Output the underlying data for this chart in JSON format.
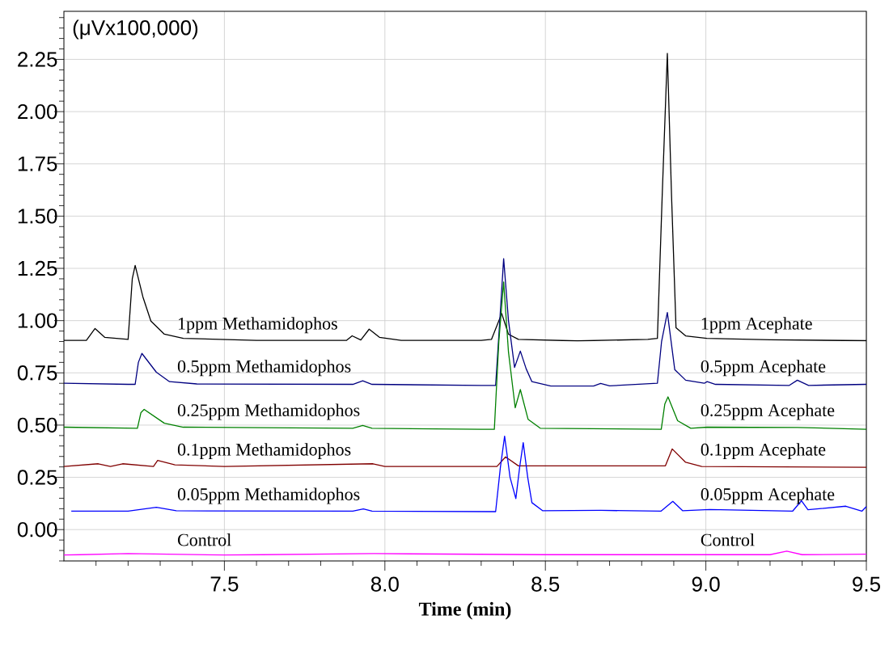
{
  "chart_data": {
    "type": "line",
    "xlabel": "Time (min)",
    "ylabel": "(μVx100,000)",
    "xlim": [
      7.0,
      9.5
    ],
    "ylim": [
      -0.15,
      2.48
    ],
    "xticks": [
      {
        "value": 7.1,
        "label": null
      },
      {
        "value": 7.2,
        "label": null
      },
      {
        "value": 7.3,
        "label": null
      },
      {
        "value": 7.4,
        "label": null
      },
      7.5,
      {
        "value": 7.6,
        "label": null
      },
      {
        "value": 7.7,
        "label": null
      },
      {
        "value": 7.8,
        "label": null
      },
      {
        "value": 7.9,
        "label": null
      },
      {
        "value": 8.0,
        "label": "8.0"
      },
      {
        "value": 8.1,
        "label": null
      },
      {
        "value": 8.2,
        "label": null
      },
      {
        "value": 8.3,
        "label": null
      },
      {
        "value": 8.4,
        "label": null
      },
      8.5,
      {
        "value": 8.6,
        "label": null
      },
      {
        "value": 8.7,
        "label": null
      },
      {
        "value": 8.8,
        "label": null
      },
      {
        "value": 8.9,
        "label": null
      },
      {
        "value": 9.0,
        "label": "9.0"
      },
      {
        "value": 9.1,
        "label": null
      },
      {
        "value": 9.2,
        "label": null
      },
      {
        "value": 9.3,
        "label": null
      },
      {
        "value": 9.4,
        "label": null
      },
      9.5
    ],
    "yticks": [
      {
        "value": -0.15,
        "label": null
      },
      {
        "value": -0.1,
        "label": null
      },
      {
        "value": -0.05,
        "label": null
      },
      {
        "value": 0,
        "label": "0.00"
      },
      {
        "value": 0.05,
        "label": null
      },
      {
        "value": 0.1,
        "label": null
      },
      {
        "value": 0.15,
        "label": null
      },
      {
        "value": 0.2,
        "label": null
      },
      0.25,
      {
        "value": 0.3,
        "label": null
      },
      {
        "value": 0.35,
        "label": null
      },
      {
        "value": 0.4,
        "label": null
      },
      {
        "value": 0.45,
        "label": null
      },
      {
        "value": 0.5,
        "label": "0.50"
      },
      {
        "value": 0.55,
        "label": null
      },
      {
        "value": 0.6,
        "label": null
      },
      {
        "value": 0.65,
        "label": null
      },
      {
        "value": 0.7,
        "label": null
      },
      0.75,
      {
        "value": 0.8,
        "label": null
      },
      {
        "value": 0.85,
        "label": null
      },
      {
        "value": 0.9,
        "label": null
      },
      {
        "value": 0.95,
        "label": null
      },
      {
        "value": 1.0,
        "label": "1.00"
      },
      {
        "value": 1.05,
        "label": null
      },
      {
        "value": 1.1,
        "label": null
      },
      {
        "value": 1.15,
        "label": null
      },
      {
        "value": 1.2,
        "label": null
      },
      1.25,
      {
        "value": 1.3,
        "label": null
      },
      {
        "value": 1.35,
        "label": null
      },
      {
        "value": 1.4,
        "label": null
      },
      {
        "value": 1.45,
        "label": null
      },
      {
        "value": 1.5,
        "label": "1.50"
      },
      {
        "value": 1.55,
        "label": null
      },
      {
        "value": 1.6,
        "label": null
      },
      {
        "value": 1.65,
        "label": null
      },
      {
        "value": 1.7,
        "label": null
      },
      1.75,
      {
        "value": 1.8,
        "label": null
      },
      {
        "value": 1.85,
        "label": null
      },
      {
        "value": 1.9,
        "label": null
      },
      {
        "value": 1.95,
        "label": null
      },
      {
        "value": 2.0,
        "label": "2.00"
      },
      {
        "value": 2.05,
        "label": null
      },
      {
        "value": 2.1,
        "label": null
      },
      {
        "value": 2.15,
        "label": null
      },
      {
        "value": 2.2,
        "label": null
      },
      2.25,
      {
        "value": 2.3,
        "label": null
      },
      {
        "value": 2.35,
        "label": null
      },
      {
        "value": 2.4,
        "label": null
      },
      {
        "value": 2.45,
        "label": null
      }
    ],
    "grid": true,
    "marker": "none",
    "line_style": "solid",
    "series": [
      {
        "color": "#000000",
        "x": [
          7.0,
          7.07,
          7.097,
          7.127,
          7.2,
          7.213,
          7.222,
          7.246,
          7.271,
          7.313,
          7.372,
          7.6,
          7.88,
          7.898,
          7.925,
          7.951,
          7.983,
          8.051,
          8.3,
          8.332,
          8.364,
          8.385,
          8.416,
          8.6,
          8.819,
          8.849,
          8.864,
          8.88,
          8.893,
          8.907,
          8.937,
          9.003,
          9.2,
          9.5
        ],
        "values": [
          0.905,
          0.905,
          0.962,
          0.92,
          0.91,
          1.2,
          1.264,
          1.114,
          0.998,
          0.935,
          0.915,
          0.905,
          0.905,
          0.927,
          0.907,
          0.959,
          0.92,
          0.905,
          0.905,
          0.91,
          1.034,
          0.935,
          0.91,
          0.903,
          0.91,
          0.915,
          1.6,
          2.279,
          1.6,
          0.966,
          0.927,
          0.915,
          0.908,
          0.904
        ]
      },
      {
        "color": "#000080",
        "x": [
          7.0,
          7.2,
          7.222,
          7.232,
          7.243,
          7.288,
          7.329,
          7.414,
          7.9,
          7.931,
          7.96,
          8.3,
          8.345,
          8.358,
          8.37,
          8.385,
          8.404,
          8.422,
          8.44,
          8.458,
          8.517,
          8.65,
          8.672,
          8.7,
          8.849,
          8.862,
          8.88,
          8.903,
          8.937,
          8.995,
          9.004,
          9.03,
          9.26,
          9.285,
          9.32,
          9.5
        ],
        "values": [
          0.7,
          0.695,
          0.695,
          0.8,
          0.843,
          0.753,
          0.708,
          0.697,
          0.695,
          0.712,
          0.695,
          0.69,
          0.69,
          1.0,
          1.297,
          1.0,
          0.776,
          0.854,
          0.77,
          0.708,
          0.687,
          0.687,
          0.699,
          0.688,
          0.7,
          0.9,
          1.039,
          0.766,
          0.715,
          0.7,
          0.708,
          0.695,
          0.69,
          0.715,
          0.69,
          0.695
        ]
      },
      {
        "color": "#008000",
        "x": [
          7.0,
          7.229,
          7.24,
          7.25,
          7.313,
          7.372,
          7.9,
          7.931,
          7.96,
          8.3,
          8.341,
          8.355,
          8.37,
          8.385,
          8.406,
          8.422,
          8.446,
          8.484,
          8.861,
          8.872,
          8.882,
          8.912,
          8.953,
          9.004,
          9.285,
          9.5
        ],
        "values": [
          0.49,
          0.485,
          0.56,
          0.575,
          0.509,
          0.49,
          0.485,
          0.498,
          0.485,
          0.48,
          0.48,
          0.9,
          1.185,
          0.85,
          0.583,
          0.67,
          0.528,
          0.485,
          0.48,
          0.6,
          0.635,
          0.521,
          0.485,
          0.49,
          0.489,
          0.48
        ]
      },
      {
        "color": "#800000",
        "x": [
          7.0,
          7.107,
          7.145,
          7.183,
          7.279,
          7.292,
          7.346,
          7.5,
          7.963,
          8.0,
          8.349,
          8.376,
          8.416,
          8.874,
          8.895,
          8.937,
          8.987,
          9.5
        ],
        "values": [
          0.302,
          0.315,
          0.302,
          0.315,
          0.302,
          0.331,
          0.31,
          0.302,
          0.315,
          0.302,
          0.302,
          0.348,
          0.305,
          0.305,
          0.386,
          0.322,
          0.302,
          0.298
        ]
      },
      {
        "color": "#0000ff",
        "x": [
          7.023,
          7.2,
          7.288,
          7.35,
          7.9,
          7.933,
          7.96,
          8.345,
          8.36,
          8.373,
          8.39,
          8.408,
          8.42,
          8.431,
          8.445,
          8.458,
          8.492,
          8.672,
          8.86,
          8.897,
          8.928,
          9.012,
          9.27,
          9.298,
          9.318,
          9.436,
          9.486,
          9.5
        ],
        "values": [
          0.088,
          0.088,
          0.107,
          0.09,
          0.088,
          0.099,
          0.088,
          0.086,
          0.3,
          0.447,
          0.25,
          0.148,
          0.3,
          0.416,
          0.25,
          0.129,
          0.09,
          0.092,
          0.088,
          0.135,
          0.09,
          0.096,
          0.088,
          0.138,
          0.095,
          0.112,
          0.088,
          0.11
        ]
      },
      {
        "color": "#ff00ff",
        "x": [
          7.0,
          7.2,
          7.5,
          7.967,
          8.5,
          9.2,
          9.252,
          9.3,
          9.5
        ],
        "values": [
          -0.122,
          -0.115,
          -0.122,
          -0.115,
          -0.12,
          -0.12,
          -0.103,
          -0.12,
          -0.118
        ]
      }
    ],
    "annotations": [
      "1ppm Methamidophos",
      "0.5ppm Methamidophos",
      "0.25ppm Methamidophos",
      "0.1ppm Methamidophos",
      "0.05ppm Methamidophos",
      "Control",
      "1ppm Acephate",
      "0.5ppm Acephate",
      "0.25ppm Acephate",
      "0.1ppm Acephate",
      "0.05ppm Acephate",
      "Control"
    ]
  }
}
